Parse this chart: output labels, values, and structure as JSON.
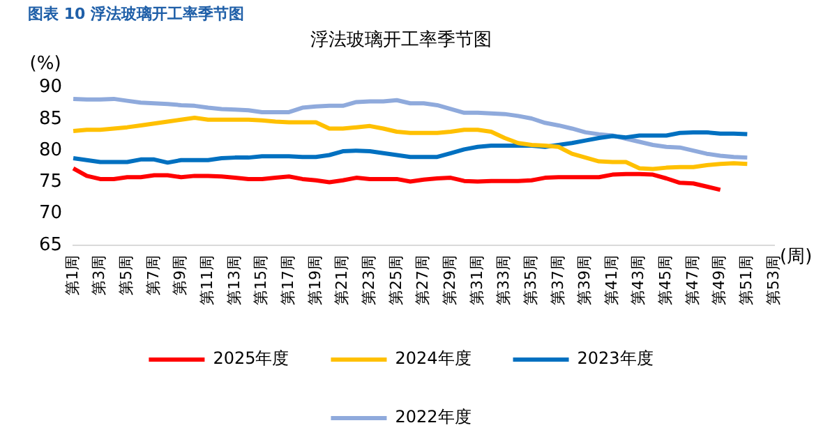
{
  "chart_data": {
    "type": "line",
    "title": "图表 10 浮法玻璃开工率季节图",
    "subtitle": "浮法玻璃开工率季节图",
    "ylabel": "(%)",
    "xlabel": "(周)",
    "categories": [
      "第1周",
      null,
      "第3周",
      null,
      "第5周",
      null,
      "第7周",
      null,
      "第9周",
      null,
      "第11周",
      null,
      "第13周",
      null,
      "第15周",
      null,
      "第17周",
      null,
      "第19周",
      null,
      "第21周",
      null,
      "第23周",
      null,
      "第25周",
      null,
      "第27周",
      null,
      "第29周",
      null,
      "第31周",
      null,
      "第33周",
      null,
      "第35周",
      null,
      "第37周",
      null,
      "第39周",
      null,
      "第41周",
      null,
      "第43周",
      null,
      "第45周",
      null,
      "第47周",
      null,
      "第49周",
      null,
      "第51周",
      null,
      "第53周"
    ],
    "ylim": [
      65,
      90
    ],
    "yticks": [
      65,
      70,
      75,
      80,
      85,
      90
    ],
    "grid": false,
    "legend": "bottom",
    "marker": "none",
    "line_style": "solid",
    "series": [
      {
        "name": "2025年度",
        "color": "#ff0000",
        "values": [
          77.2,
          76.0,
          75.5,
          75.5,
          75.8,
          75.8,
          76.1,
          76.1,
          75.8,
          76.0,
          76.0,
          75.9,
          75.7,
          75.5,
          75.5,
          75.7,
          75.9,
          75.5,
          75.3,
          75.0,
          75.3,
          75.7,
          75.5,
          75.5,
          75.5,
          75.1,
          75.4,
          75.6,
          75.7,
          75.2,
          75.1,
          75.2,
          75.2,
          75.2,
          75.3,
          75.7,
          75.8,
          75.8,
          75.8,
          75.8,
          76.2,
          76.3,
          76.3,
          76.2,
          75.6,
          74.9,
          74.8,
          74.3,
          73.8,
          null,
          null,
          null,
          null
        ]
      },
      {
        "name": "2024年度",
        "color": "#ffc000",
        "values": [
          83.1,
          83.3,
          83.3,
          83.5,
          83.7,
          84.0,
          84.3,
          84.6,
          84.9,
          85.2,
          84.9,
          84.9,
          84.9,
          84.9,
          84.8,
          84.6,
          84.5,
          84.5,
          84.5,
          83.5,
          83.5,
          83.7,
          83.9,
          83.5,
          83.0,
          82.8,
          82.8,
          82.8,
          83.0,
          83.3,
          83.3,
          83.0,
          82.0,
          81.2,
          80.9,
          80.8,
          80.6,
          79.5,
          78.9,
          78.3,
          78.2,
          78.2,
          77.2,
          77.1,
          77.3,
          77.4,
          77.4,
          77.7,
          77.9,
          78.0,
          77.9,
          null,
          null
        ]
      },
      {
        "name": "2023年度",
        "color": "#0070c0",
        "values": [
          78.8,
          78.5,
          78.2,
          78.2,
          78.2,
          78.6,
          78.6,
          78.1,
          78.5,
          78.5,
          78.5,
          78.8,
          78.9,
          78.9,
          79.1,
          79.1,
          79.1,
          79.0,
          79.0,
          79.3,
          79.9,
          80.0,
          79.9,
          79.6,
          79.3,
          79.0,
          79.0,
          79.0,
          79.6,
          80.2,
          80.6,
          80.8,
          80.8,
          80.8,
          80.8,
          80.6,
          80.9,
          81.2,
          81.6,
          82.0,
          82.3,
          82.1,
          82.4,
          82.4,
          82.4,
          82.8,
          82.9,
          82.9,
          82.7,
          82.7,
          82.6,
          null,
          null
        ]
      },
      {
        "name": "2022年度",
        "color": "#8faadc",
        "values": [
          88.2,
          88.1,
          88.1,
          88.2,
          87.9,
          87.6,
          87.5,
          87.4,
          87.2,
          87.1,
          86.8,
          86.6,
          86.5,
          86.4,
          86.1,
          86.1,
          86.1,
          86.8,
          87.0,
          87.1,
          87.1,
          87.7,
          87.8,
          87.8,
          88.0,
          87.5,
          87.5,
          87.2,
          86.6,
          86.0,
          86.0,
          85.9,
          85.8,
          85.5,
          85.1,
          84.4,
          84.0,
          83.5,
          82.9,
          82.6,
          82.4,
          81.9,
          81.4,
          80.9,
          80.6,
          80.5,
          80.0,
          79.5,
          79.2,
          79.0,
          78.9,
          null,
          null
        ]
      }
    ]
  }
}
